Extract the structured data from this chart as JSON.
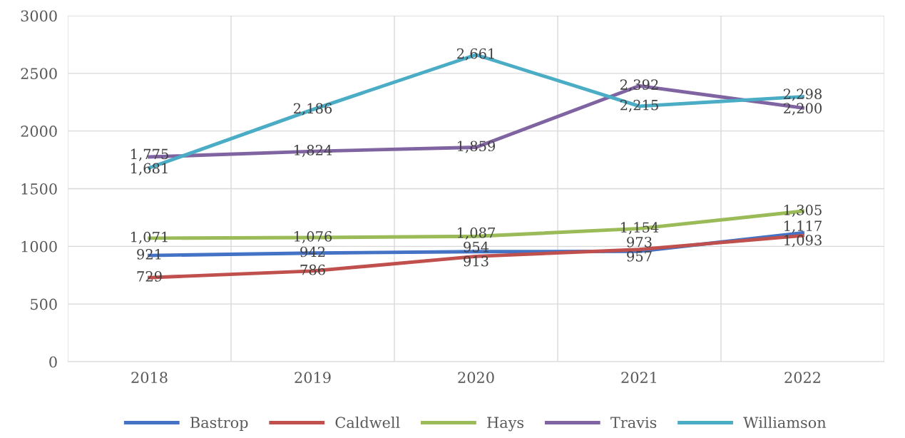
{
  "chart_data": {
    "type": "line",
    "categories": [
      "2018",
      "2019",
      "2020",
      "2021",
      "2022"
    ],
    "series": [
      {
        "name": "Bastrop",
        "color": "#4472c4",
        "values": [
          921,
          942,
          954,
          957,
          1117
        ],
        "value_labels": [
          "921",
          "942",
          "954",
          "957",
          "1,117"
        ]
      },
      {
        "name": "Caldwell",
        "color": "#c0504d",
        "values": [
          729,
          786,
          913,
          973,
          1093
        ],
        "value_labels": [
          "729",
          "786",
          "913",
          "973",
          "1,093"
        ]
      },
      {
        "name": "Hays",
        "color": "#9bbb59",
        "values": [
          1071,
          1076,
          1087,
          1154,
          1305
        ],
        "value_labels": [
          "1,071",
          "1,076",
          "1,087",
          "1,154",
          "1,305"
        ]
      },
      {
        "name": "Travis",
        "color": "#8064a2",
        "values": [
          1775,
          1824,
          1859,
          2392,
          2200
        ],
        "value_labels": [
          "1,775",
          "1,824",
          "1,859",
          "2,392",
          "2,200"
        ]
      },
      {
        "name": "Williamson",
        "color": "#4bacc6",
        "values": [
          1681,
          2186,
          2661,
          2215,
          2298
        ],
        "value_labels": [
          "1,681",
          "2,186",
          "2,661",
          "2,215",
          "2,298"
        ]
      }
    ],
    "ylim": [
      0,
      3000
    ],
    "yticks": [
      0,
      500,
      1000,
      1500,
      2000,
      2500,
      3000
    ],
    "grid": true,
    "legend": "bottom",
    "marker": "none",
    "line_style": "solid"
  }
}
